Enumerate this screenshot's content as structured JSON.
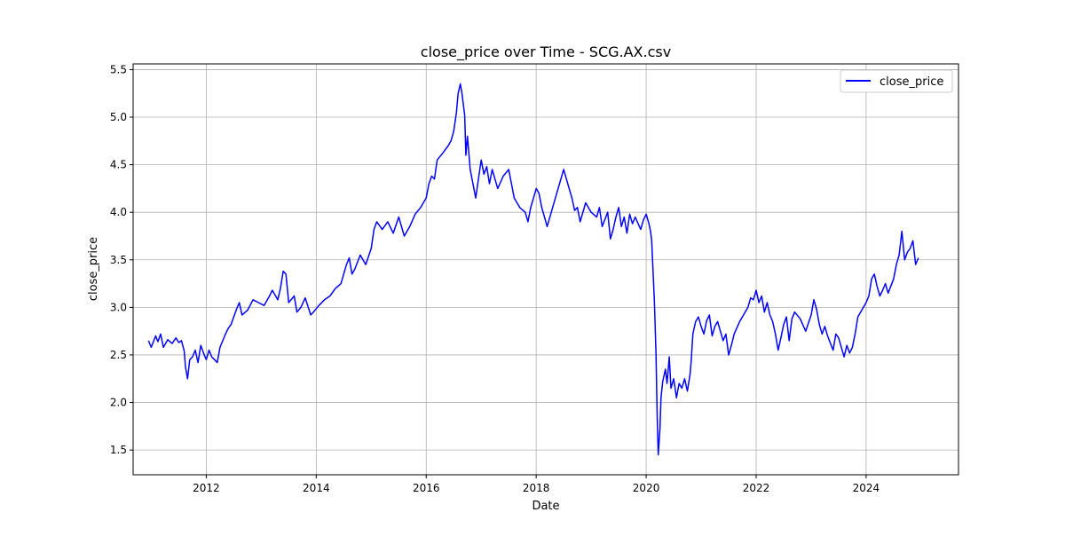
{
  "chart_data": {
    "type": "line",
    "title": "close_price over Time - SCG.AX.csv",
    "xlabel": "Date",
    "ylabel": "close_price",
    "xlim": [
      2010.67,
      2025.68
    ],
    "ylim": [
      1.24,
      5.56
    ],
    "x_ticks": [
      2012,
      2014,
      2016,
      2018,
      2020,
      2022,
      2024
    ],
    "x_tick_labels": [
      "2012",
      "2014",
      "2016",
      "2018",
      "2020",
      "2022",
      "2024"
    ],
    "y_ticks": [
      1.5,
      2.0,
      2.5,
      3.0,
      3.5,
      4.0,
      4.5,
      5.0,
      5.5
    ],
    "y_tick_labels": [
      "1.5",
      "2.0",
      "2.5",
      "3.0",
      "3.5",
      "4.0",
      "4.5",
      "5.0",
      "5.5"
    ],
    "grid": true,
    "legend_position": "upper right",
    "series": [
      {
        "name": "close_price",
        "color": "#0000ff",
        "x": [
          2010.95,
          2011.0,
          2011.08,
          2011.12,
          2011.17,
          2011.22,
          2011.3,
          2011.38,
          2011.45,
          2011.5,
          2011.55,
          2011.6,
          2011.62,
          2011.66,
          2011.7,
          2011.75,
          2011.8,
          2011.85,
          2011.9,
          2011.95,
          2012.0,
          2012.05,
          2012.1,
          2012.15,
          2012.2,
          2012.25,
          2012.3,
          2012.35,
          2012.4,
          2012.45,
          2012.5,
          2012.55,
          2012.6,
          2012.65,
          2012.75,
          2012.85,
          2012.95,
          2013.05,
          2013.15,
          2013.2,
          2013.3,
          2013.35,
          2013.4,
          2013.45,
          2013.5,
          2013.6,
          2013.65,
          2013.72,
          2013.8,
          2013.9,
          2013.95,
          2014.05,
          2014.15,
          2014.25,
          2014.35,
          2014.45,
          2014.55,
          2014.6,
          2014.65,
          2014.7,
          2014.8,
          2014.9,
          2015.0,
          2015.05,
          2015.1,
          2015.2,
          2015.3,
          2015.4,
          2015.5,
          2015.6,
          2015.7,
          2015.8,
          2015.9,
          2016.0,
          2016.05,
          2016.1,
          2016.15,
          2016.2,
          2016.3,
          2016.4,
          2016.45,
          2016.5,
          2016.55,
          2016.58,
          2016.62,
          2016.65,
          2016.7,
          2016.72,
          2016.75,
          2016.8,
          2016.85,
          2016.9,
          2016.95,
          2017.0,
          2017.05,
          2017.1,
          2017.15,
          2017.2,
          2017.3,
          2017.4,
          2017.5,
          2017.55,
          2017.6,
          2017.7,
          2017.8,
          2017.85,
          2017.9,
          2018.0,
          2018.05,
          2018.1,
          2018.15,
          2018.2,
          2018.25,
          2018.3,
          2018.35,
          2018.45,
          2018.5,
          2018.55,
          2018.6,
          2018.65,
          2018.7,
          2018.75,
          2018.8,
          2018.9,
          2019.0,
          2019.1,
          2019.15,
          2019.2,
          2019.3,
          2019.35,
          2019.4,
          2019.45,
          2019.5,
          2019.55,
          2019.6,
          2019.65,
          2019.7,
          2019.75,
          2019.8,
          2019.9,
          2019.95,
          2020.0,
          2020.05,
          2020.08,
          2020.1,
          2020.12,
          2020.15,
          2020.18,
          2020.2,
          2020.22,
          2020.25,
          2020.27,
          2020.3,
          2020.35,
          2020.38,
          2020.42,
          2020.45,
          2020.5,
          2020.55,
          2020.6,
          2020.65,
          2020.7,
          2020.75,
          2020.8,
          2020.82,
          2020.85,
          2020.9,
          2020.95,
          2021.0,
          2021.05,
          2021.1,
          2021.15,
          2021.2,
          2021.25,
          2021.3,
          2021.4,
          2021.45,
          2021.5,
          2021.55,
          2021.6,
          2021.7,
          2021.8,
          2021.85,
          2021.9,
          2021.95,
          2022.0,
          2022.05,
          2022.1,
          2022.15,
          2022.2,
          2022.25,
          2022.3,
          2022.35,
          2022.4,
          2022.45,
          2022.5,
          2022.55,
          2022.6,
          2022.65,
          2022.7,
          2022.8,
          2022.9,
          2023.0,
          2023.05,
          2023.1,
          2023.15,
          2023.2,
          2023.25,
          2023.3,
          2023.4,
          2023.45,
          2023.5,
          2023.6,
          2023.65,
          2023.7,
          2023.75,
          2023.8,
          2023.85,
          2023.9,
          2024.0,
          2024.05,
          2024.1,
          2024.15,
          2024.2,
          2024.25,
          2024.3,
          2024.35,
          2024.4,
          2024.5,
          2024.55,
          2024.6,
          2024.65,
          2024.7,
          2024.75,
          2024.8,
          2024.85,
          2024.9,
          2024.95
        ],
        "y": [
          2.65,
          2.58,
          2.7,
          2.64,
          2.72,
          2.58,
          2.66,
          2.62,
          2.68,
          2.63,
          2.65,
          2.54,
          2.38,
          2.25,
          2.45,
          2.48,
          2.55,
          2.42,
          2.6,
          2.52,
          2.45,
          2.55,
          2.48,
          2.45,
          2.42,
          2.58,
          2.65,
          2.72,
          2.78,
          2.82,
          2.9,
          2.98,
          3.05,
          2.92,
          2.97,
          3.08,
          3.05,
          3.02,
          3.12,
          3.18,
          3.08,
          3.2,
          3.38,
          3.35,
          3.05,
          3.12,
          2.95,
          3.0,
          3.1,
          2.92,
          2.95,
          3.02,
          3.08,
          3.12,
          3.2,
          3.25,
          3.45,
          3.52,
          3.35,
          3.4,
          3.55,
          3.45,
          3.62,
          3.82,
          3.9,
          3.82,
          3.9,
          3.78,
          3.95,
          3.75,
          3.85,
          3.98,
          4.05,
          4.15,
          4.3,
          4.38,
          4.35,
          4.55,
          4.62,
          4.7,
          4.75,
          4.85,
          5.05,
          5.25,
          5.35,
          5.25,
          5.02,
          4.6,
          4.8,
          4.45,
          4.3,
          4.15,
          4.35,
          4.55,
          4.4,
          4.48,
          4.3,
          4.45,
          4.25,
          4.38,
          4.45,
          4.3,
          4.15,
          4.05,
          4.0,
          3.9,
          4.05,
          4.25,
          4.2,
          4.05,
          3.95,
          3.85,
          3.95,
          4.05,
          4.15,
          4.35,
          4.45,
          4.35,
          4.25,
          4.15,
          4.02,
          4.05,
          3.9,
          4.1,
          4.0,
          3.95,
          4.05,
          3.85,
          4.0,
          3.72,
          3.82,
          3.95,
          4.05,
          3.85,
          3.95,
          3.78,
          3.98,
          3.88,
          3.95,
          3.82,
          3.92,
          3.98,
          3.88,
          3.8,
          3.7,
          3.45,
          3.05,
          2.5,
          1.85,
          1.45,
          1.72,
          2.05,
          2.22,
          2.35,
          2.2,
          2.48,
          2.15,
          2.25,
          2.05,
          2.2,
          2.15,
          2.25,
          2.12,
          2.3,
          2.45,
          2.72,
          2.85,
          2.9,
          2.8,
          2.72,
          2.86,
          2.92,
          2.7,
          2.8,
          2.85,
          2.65,
          2.72,
          2.5,
          2.6,
          2.72,
          2.85,
          2.95,
          3.0,
          3.1,
          3.08,
          3.18,
          3.05,
          3.12,
          2.95,
          3.05,
          2.92,
          2.85,
          2.72,
          2.55,
          2.68,
          2.82,
          2.9,
          2.65,
          2.88,
          2.95,
          2.88,
          2.75,
          2.92,
          3.08,
          2.98,
          2.82,
          2.72,
          2.8,
          2.7,
          2.55,
          2.72,
          2.68,
          2.48,
          2.6,
          2.52,
          2.58,
          2.72,
          2.9,
          2.95,
          3.05,
          3.12,
          3.3,
          3.35,
          3.22,
          3.12,
          3.18,
          3.25,
          3.15,
          3.3,
          3.45,
          3.55,
          3.8,
          3.5,
          3.58,
          3.62,
          3.7,
          3.45,
          3.52
        ]
      }
    ]
  }
}
